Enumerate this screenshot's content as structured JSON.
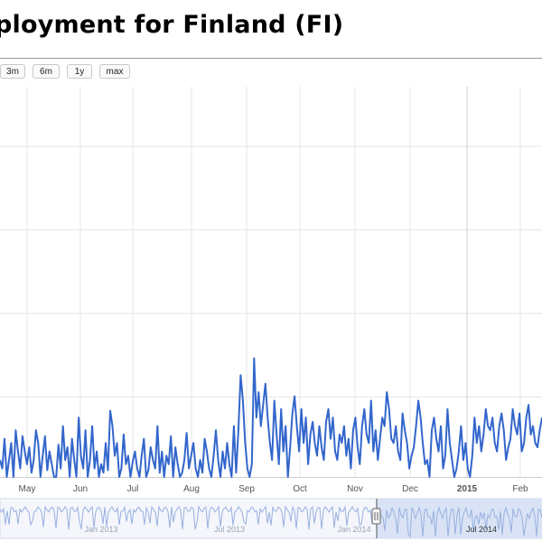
{
  "page": {
    "title": "ployment for Finland (FI)"
  },
  "zoom_buttons": [
    {
      "label": "3m"
    },
    {
      "label": "6m"
    },
    {
      "label": "1y"
    },
    {
      "label": "max"
    }
  ],
  "colors": {
    "series": "#3366cc",
    "grid": "#e6e6e6",
    "navigator_fill": "#d9e3f5",
    "navigator_line": "#98b0e0"
  },
  "chart_data": [
    {
      "type": "line",
      "title": "",
      "xlabel": "",
      "ylabel": "",
      "x_ticks": [
        "May",
        "Jun",
        "Jul",
        "Aug",
        "Sep",
        "Oct",
        "Nov",
        "Dec",
        "2015",
        "Feb"
      ],
      "x_start": "2014-04-24",
      "x_end": "2015-02-22",
      "grid": true,
      "series": [
        {
          "values": [
            20,
            10,
            45,
            0,
            20,
            40,
            0,
            55,
            30,
            10,
            48,
            30,
            15,
            35,
            5,
            20,
            55,
            40,
            0,
            25,
            48,
            8,
            30,
            15,
            0,
            0,
            38,
            10,
            60,
            20,
            35,
            0,
            45,
            20,
            0,
            70,
            25,
            10,
            55,
            0,
            20,
            60,
            10,
            30,
            0,
            15,
            5,
            40,
            8,
            78,
            60,
            25,
            40,
            0,
            10,
            50,
            15,
            25,
            0,
            18,
            30,
            10,
            0,
            25,
            45,
            0,
            8,
            35,
            20,
            10,
            60,
            5,
            30,
            0,
            25,
            15,
            48,
            0,
            35,
            15,
            0,
            5,
            20,
            52,
            10,
            25,
            40,
            10,
            0,
            20,
            5,
            45,
            30,
            10,
            0,
            25,
            55,
            20,
            0,
            30,
            10,
            40,
            15,
            0,
            60,
            5,
            55,
            120,
            90,
            40,
            10,
            0,
            15,
            140,
            70,
            100,
            60,
            85,
            110,
            70,
            40,
            20,
            90,
            50,
            15,
            80,
            30,
            60,
            0,
            35,
            75,
            95,
            60,
            30,
            80,
            40,
            70,
            15,
            50,
            65,
            40,
            25,
            60,
            35,
            20,
            65,
            80,
            45,
            70,
            30,
            20,
            50,
            40,
            60,
            25,
            45,
            10,
            55,
            70,
            35,
            15,
            60,
            80,
            50,
            40,
            90,
            30,
            55,
            20,
            45,
            70,
            60,
            100,
            80,
            45,
            40,
            60,
            30,
            20,
            75,
            55,
            40,
            10,
            25,
            35,
            60,
            90,
            70,
            40,
            15,
            20,
            0,
            55,
            70,
            45,
            30,
            60,
            10,
            25,
            80,
            40,
            20,
            0,
            10,
            30,
            60,
            20,
            40,
            10,
            0,
            25,
            70,
            40,
            60,
            30,
            50,
            80,
            60,
            55,
            70,
            40,
            30,
            60,
            75,
            55,
            20,
            35,
            45,
            80,
            60,
            50,
            75,
            30,
            40,
            70,
            85,
            50,
            60,
            40,
            35,
            55,
            70
          ]
        }
      ],
      "ylim": [
        0,
        460
      ]
    },
    {
      "type": "area",
      "navigator_labels": [
        "Jan 2013",
        "Jul 2013",
        "Jan 2014",
        "Jul 2014"
      ]
    }
  ]
}
